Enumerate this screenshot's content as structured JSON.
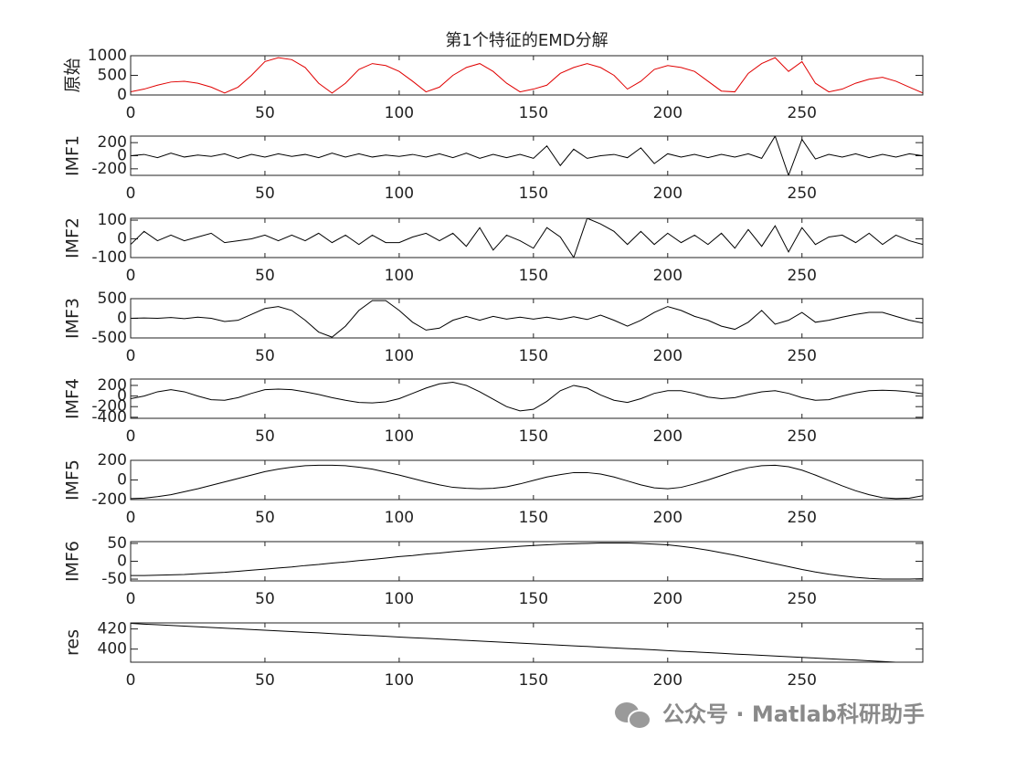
{
  "chart_data": [
    {
      "type": "line",
      "title": "第1个特征的EMD分解",
      "ylabel": "原始",
      "color": "#e00000",
      "x": [
        0,
        5,
        10,
        15,
        20,
        25,
        30,
        35,
        40,
        45,
        50,
        55,
        60,
        65,
        70,
        75,
        80,
        85,
        90,
        95,
        100,
        105,
        110,
        115,
        120,
        125,
        130,
        135,
        140,
        145,
        150,
        155,
        160,
        165,
        170,
        175,
        180,
        185,
        190,
        195,
        200,
        205,
        210,
        215,
        220,
        225,
        230,
        235,
        240,
        245,
        250,
        255,
        260,
        265,
        270,
        275,
        280,
        285,
        290,
        295
      ],
      "values": [
        80,
        150,
        250,
        330,
        350,
        300,
        200,
        50,
        200,
        500,
        850,
        950,
        900,
        700,
        300,
        50,
        300,
        650,
        800,
        750,
        600,
        350,
        80,
        200,
        500,
        700,
        800,
        600,
        300,
        80,
        150,
        250,
        550,
        700,
        800,
        700,
        500,
        150,
        350,
        650,
        750,
        700,
        600,
        350,
        100,
        80,
        550,
        800,
        950,
        600,
        850,
        300,
        80,
        150,
        300,
        400,
        450,
        350,
        200,
        50
      ],
      "xlim": [
        0,
        295
      ],
      "xticks": [
        0,
        50,
        100,
        150,
        200,
        250
      ],
      "ylim": [
        0,
        1000
      ],
      "yticks": [
        0,
        500,
        1000
      ]
    },
    {
      "type": "line",
      "ylabel": "IMF1",
      "color": "#000000",
      "x": [
        0,
        5,
        10,
        15,
        20,
        25,
        30,
        35,
        40,
        45,
        50,
        55,
        60,
        65,
        70,
        75,
        80,
        85,
        90,
        95,
        100,
        105,
        110,
        115,
        120,
        125,
        130,
        135,
        140,
        145,
        150,
        155,
        160,
        165,
        170,
        175,
        180,
        185,
        190,
        195,
        200,
        205,
        210,
        215,
        220,
        225,
        230,
        235,
        240,
        245,
        250,
        255,
        260,
        265,
        270,
        275,
        280,
        285,
        290,
        295
      ],
      "values": [
        0,
        20,
        -30,
        40,
        -20,
        10,
        -10,
        30,
        -40,
        20,
        -20,
        30,
        -10,
        20,
        -30,
        40,
        -20,
        30,
        -20,
        10,
        -10,
        20,
        -20,
        30,
        -30,
        40,
        -40,
        20,
        -30,
        20,
        -40,
        150,
        -150,
        100,
        -40,
        0,
        20,
        -30,
        120,
        -120,
        30,
        -20,
        20,
        -30,
        20,
        -20,
        30,
        -40,
        300,
        -300,
        250,
        -50,
        20,
        -20,
        30,
        -30,
        20,
        -20,
        30,
        0
      ],
      "xlim": [
        0,
        295
      ],
      "xticks": [
        0,
        50,
        100,
        150,
        200,
        250
      ],
      "ylim": [
        -300,
        300
      ],
      "yticks": [
        -200,
        0,
        200
      ]
    },
    {
      "type": "line",
      "ylabel": "IMF2",
      "color": "#000000",
      "x": [
        0,
        5,
        10,
        15,
        20,
        25,
        30,
        35,
        40,
        45,
        50,
        55,
        60,
        65,
        70,
        75,
        80,
        85,
        90,
        95,
        100,
        105,
        110,
        115,
        120,
        125,
        130,
        135,
        140,
        145,
        150,
        155,
        160,
        165,
        170,
        175,
        180,
        185,
        190,
        195,
        200,
        205,
        210,
        215,
        220,
        225,
        230,
        235,
        240,
        245,
        250,
        255,
        260,
        265,
        270,
        275,
        280,
        285,
        290,
        295
      ],
      "values": [
        -30,
        40,
        -10,
        20,
        -10,
        10,
        30,
        -20,
        -10,
        0,
        20,
        -10,
        20,
        -10,
        30,
        -20,
        20,
        -30,
        20,
        -20,
        -20,
        10,
        30,
        -10,
        30,
        -40,
        60,
        -60,
        20,
        -10,
        -50,
        60,
        10,
        -100,
        110,
        80,
        40,
        -30,
        40,
        -30,
        30,
        -20,
        20,
        -30,
        30,
        -50,
        50,
        -40,
        70,
        -70,
        60,
        -30,
        10,
        20,
        -20,
        30,
        -30,
        20,
        -10,
        -30
      ],
      "xlim": [
        0,
        295
      ],
      "xticks": [
        0,
        50,
        100,
        150,
        200,
        250
      ],
      "ylim": [
        -100,
        110
      ],
      "yticks": [
        -100,
        0,
        100
      ]
    },
    {
      "type": "line",
      "ylabel": "IMF3",
      "color": "#000000",
      "x": [
        0,
        5,
        10,
        15,
        20,
        25,
        30,
        35,
        40,
        45,
        50,
        55,
        60,
        65,
        70,
        75,
        80,
        85,
        90,
        95,
        100,
        105,
        110,
        115,
        120,
        125,
        130,
        135,
        140,
        145,
        150,
        155,
        160,
        165,
        170,
        175,
        180,
        185,
        190,
        195,
        200,
        205,
        210,
        215,
        220,
        225,
        230,
        235,
        240,
        245,
        250,
        255,
        260,
        265,
        270,
        275,
        280,
        285,
        290,
        295
      ],
      "values": [
        0,
        10,
        0,
        20,
        -10,
        30,
        0,
        -80,
        -50,
        100,
        250,
        300,
        200,
        -50,
        -350,
        -480,
        -200,
        200,
        450,
        450,
        200,
        -100,
        -300,
        -250,
        -50,
        50,
        -50,
        50,
        -20,
        30,
        -20,
        30,
        -30,
        40,
        -30,
        80,
        -50,
        -200,
        -50,
        150,
        300,
        200,
        50,
        -50,
        -200,
        -280,
        -100,
        200,
        -150,
        -50,
        150,
        -100,
        -50,
        30,
        100,
        150,
        150,
        50,
        -50,
        -120
      ],
      "xlim": [
        0,
        295
      ],
      "xticks": [
        0,
        50,
        100,
        150,
        200,
        250
      ],
      "ylim": [
        -500,
        500
      ],
      "yticks": [
        -500,
        0,
        500
      ]
    },
    {
      "type": "line",
      "ylabel": "IMF4",
      "color": "#000000",
      "x": [
        0,
        5,
        10,
        15,
        20,
        25,
        30,
        35,
        40,
        45,
        50,
        55,
        60,
        65,
        70,
        75,
        80,
        85,
        90,
        95,
        100,
        105,
        110,
        115,
        120,
        125,
        130,
        135,
        140,
        145,
        150,
        155,
        160,
        165,
        170,
        175,
        180,
        185,
        190,
        195,
        200,
        205,
        210,
        215,
        220,
        225,
        230,
        235,
        240,
        245,
        250,
        255,
        260,
        265,
        270,
        275,
        280,
        285,
        290,
        295
      ],
      "values": [
        -50,
        0,
        80,
        120,
        80,
        0,
        -70,
        -80,
        -30,
        50,
        120,
        130,
        120,
        80,
        30,
        -30,
        -80,
        -120,
        -130,
        -110,
        -50,
        50,
        150,
        230,
        260,
        200,
        80,
        -60,
        -200,
        -280,
        -250,
        -100,
        100,
        200,
        150,
        20,
        -80,
        -120,
        -50,
        50,
        100,
        100,
        50,
        -20,
        -50,
        -30,
        30,
        80,
        100,
        50,
        -30,
        -80,
        -70,
        0,
        60,
        100,
        110,
        100,
        80,
        40
      ],
      "xlim": [
        0,
        295
      ],
      "xticks": [
        0,
        50,
        100,
        150,
        200,
        250
      ],
      "ylim": [
        -420,
        320
      ],
      "yticks": [
        -400,
        -200,
        0,
        200
      ]
    },
    {
      "type": "line",
      "ylabel": "IMF5",
      "color": "#000000",
      "x": [
        0,
        5,
        10,
        15,
        20,
        25,
        30,
        35,
        40,
        45,
        50,
        55,
        60,
        65,
        70,
        75,
        80,
        85,
        90,
        95,
        100,
        105,
        110,
        115,
        120,
        125,
        130,
        135,
        140,
        145,
        150,
        155,
        160,
        165,
        170,
        175,
        180,
        185,
        190,
        195,
        200,
        205,
        210,
        215,
        220,
        225,
        230,
        235,
        240,
        245,
        250,
        255,
        260,
        265,
        270,
        275,
        280,
        285,
        290,
        295
      ],
      "values": [
        -190,
        -185,
        -170,
        -150,
        -120,
        -90,
        -55,
        -20,
        15,
        50,
        85,
        110,
        130,
        145,
        150,
        150,
        145,
        130,
        110,
        80,
        50,
        15,
        -20,
        -50,
        -75,
        -85,
        -90,
        -85,
        -70,
        -40,
        -5,
        30,
        55,
        75,
        75,
        60,
        30,
        -10,
        -50,
        -80,
        -90,
        -75,
        -40,
        0,
        45,
        90,
        125,
        145,
        150,
        135,
        100,
        50,
        -5,
        -60,
        -110,
        -150,
        -180,
        -190,
        -185,
        -160
      ],
      "xlim": [
        0,
        295
      ],
      "xticks": [
        0,
        50,
        100,
        150,
        200,
        250
      ],
      "ylim": [
        -200,
        200
      ],
      "yticks": [
        -200,
        0,
        200
      ]
    },
    {
      "type": "line",
      "ylabel": "IMF6",
      "color": "#000000",
      "x": [
        0,
        5,
        10,
        15,
        20,
        25,
        30,
        35,
        40,
        45,
        50,
        55,
        60,
        65,
        70,
        75,
        80,
        85,
        90,
        95,
        100,
        105,
        110,
        115,
        120,
        125,
        130,
        135,
        140,
        145,
        150,
        155,
        160,
        165,
        170,
        175,
        180,
        185,
        190,
        195,
        200,
        205,
        210,
        215,
        220,
        225,
        230,
        235,
        240,
        245,
        250,
        255,
        260,
        265,
        270,
        275,
        280,
        285,
        290,
        295
      ],
      "values": [
        -40,
        -40,
        -39,
        -38,
        -37,
        -35,
        -33,
        -31,
        -28,
        -25,
        -22,
        -19,
        -16,
        -12,
        -9,
        -5,
        -2,
        2,
        5,
        9,
        13,
        16,
        20,
        23,
        27,
        30,
        33,
        36,
        39,
        42,
        44,
        46,
        48,
        49,
        50,
        51,
        51,
        51,
        50,
        48,
        46,
        42,
        37,
        31,
        24,
        17,
        9,
        1,
        -7,
        -15,
        -23,
        -30,
        -36,
        -41,
        -45,
        -48,
        -50,
        -50,
        -50,
        -49
      ],
      "xlim": [
        0,
        295
      ],
      "xticks": [
        0,
        50,
        100,
        150,
        200,
        250
      ],
      "ylim": [
        -55,
        55
      ],
      "yticks": [
        -50,
        0,
        50
      ]
    },
    {
      "type": "line",
      "ylabel": "res",
      "color": "#000000",
      "x": [
        0,
        5,
        10,
        15,
        20,
        25,
        30,
        35,
        40,
        45,
        50,
        55,
        60,
        65,
        70,
        75,
        80,
        85,
        90,
        95,
        100,
        105,
        110,
        115,
        120,
        125,
        130,
        135,
        140,
        145,
        150,
        155,
        160,
        165,
        170,
        175,
        180,
        185,
        190,
        195,
        200,
        205,
        210,
        215,
        220,
        225,
        230,
        235,
        240,
        245,
        250,
        255,
        260,
        265,
        270,
        275,
        280,
        285
      ],
      "values": [
        425.5,
        424.8,
        424.2,
        423.5,
        422.8,
        422.1,
        421.5,
        420.8,
        420.1,
        419.4,
        418.8,
        418.1,
        417.4,
        416.7,
        416.1,
        415.4,
        414.7,
        414.0,
        413.4,
        412.7,
        412.0,
        411.3,
        410.7,
        410.0,
        409.3,
        408.6,
        408.0,
        407.3,
        406.6,
        405.9,
        405.3,
        404.6,
        403.9,
        403.2,
        402.6,
        401.9,
        401.2,
        400.5,
        399.9,
        399.2,
        398.5,
        397.8,
        397.2,
        396.5,
        395.8,
        395.1,
        394.5,
        393.8,
        393.1,
        392.4,
        391.8,
        391.1,
        390.4,
        389.7,
        389.1,
        388.4,
        387.7,
        387.0
      ],
      "xlim": [
        0,
        295
      ],
      "xticks": [
        0,
        50,
        100,
        150,
        200,
        250
      ],
      "ylim": [
        387,
        426
      ],
      "yticks": [
        400,
        420
      ]
    }
  ],
  "watermark": "公众号 · Matlab科研助手"
}
